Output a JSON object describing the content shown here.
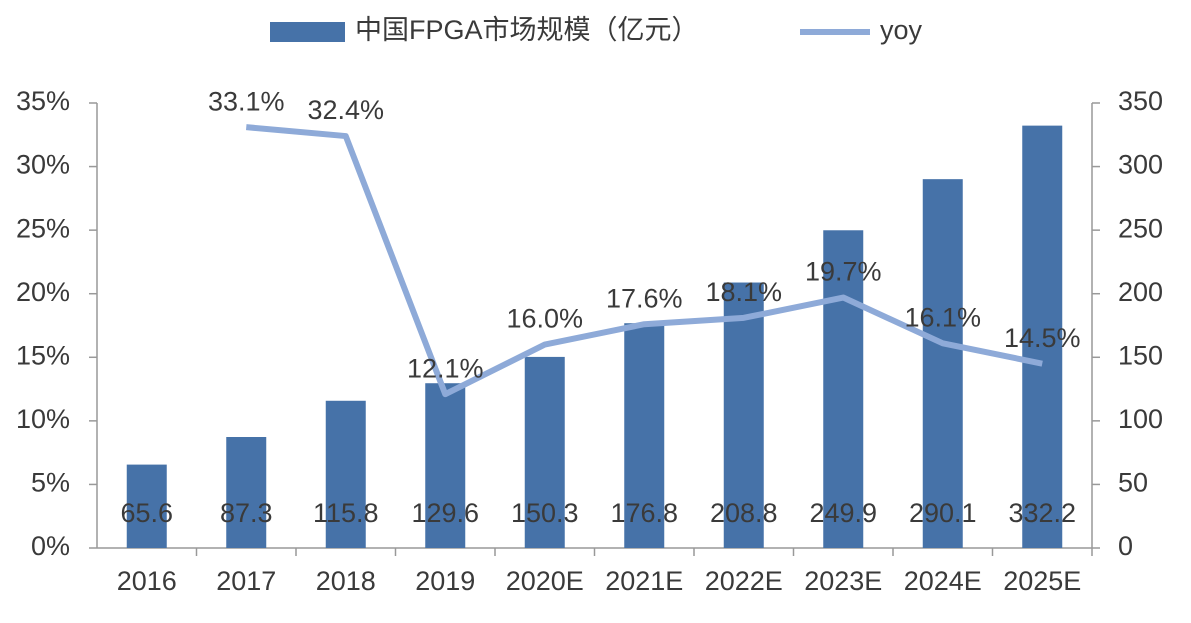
{
  "chart_data": {
    "type": "bar+line",
    "categories": [
      "2016",
      "2017",
      "2018",
      "2019",
      "2020E",
      "2021E",
      "2022E",
      "2023E",
      "2024E",
      "2025E"
    ],
    "series": [
      {
        "name": "中国FPGA市场规模（亿元）",
        "type": "bar",
        "axis": "y2",
        "color": "#4672a8",
        "values": [
          65.6,
          87.3,
          115.8,
          129.6,
          150.3,
          176.8,
          208.8,
          249.9,
          290.1,
          332.2
        ]
      },
      {
        "name": "yoy",
        "type": "line",
        "axis": "y",
        "color": "#8eaad8",
        "values": [
          null,
          33.1,
          32.4,
          12.1,
          16.0,
          17.6,
          18.1,
          19.7,
          16.1,
          14.5
        ],
        "value_labels": [
          null,
          "33.1%",
          "32.4%",
          "12.1%",
          "16.0%",
          "17.6%",
          "18.1%",
          "19.7%",
          "16.1%",
          "14.5%"
        ]
      }
    ],
    "ylim": [
      0,
      35
    ],
    "yticks": [
      {
        "value": 0,
        "label": "0%"
      },
      {
        "value": 5,
        "label": "5%"
      },
      {
        "value": 10,
        "label": "10%"
      },
      {
        "value": 15,
        "label": "15%"
      },
      {
        "value": 20,
        "label": "20%"
      },
      {
        "value": 25,
        "label": "25%"
      },
      {
        "value": 30,
        "label": "30%"
      },
      {
        "value": 35,
        "label": "35%"
      }
    ],
    "y2lim": [
      0,
      350
    ],
    "y2ticks": [
      0,
      50,
      100,
      150,
      200,
      250,
      300,
      350
    ],
    "legend": "top"
  }
}
